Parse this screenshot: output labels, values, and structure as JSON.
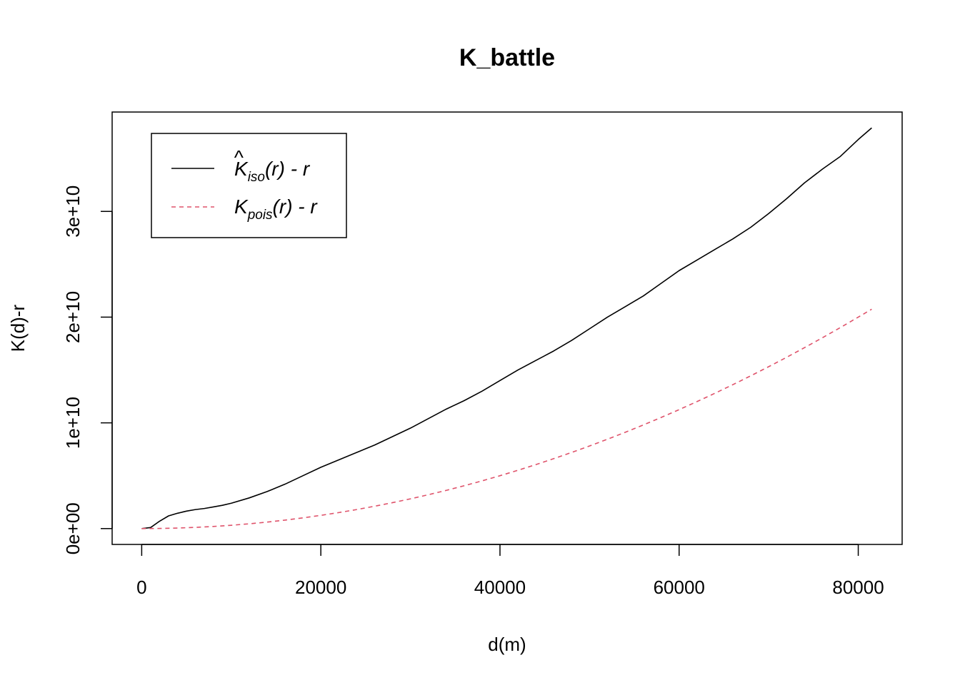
{
  "chart_data": {
    "type": "line",
    "title": "K_battle",
    "xlabel": "d(m)",
    "ylabel": "K(d)-r",
    "xlim": [
      -3300,
      84900
    ],
    "ylim": [
      -1500000000,
      39400000000
    ],
    "x_ticks": [
      0,
      20000,
      40000,
      60000,
      80000
    ],
    "x_tick_labels": [
      "0",
      "20000",
      "40000",
      "60000",
      "80000"
    ],
    "y_ticks": [
      0,
      10000000000,
      20000000000,
      30000000000
    ],
    "y_tick_labels": [
      "0e+00",
      "1e+10",
      "2e+10",
      "3e+10"
    ],
    "grid": false,
    "legend": {
      "position": "top-left",
      "entries": [
        {
          "series": 0,
          "base": "K",
          "hat": true,
          "subscript": "iso",
          "suffix": "(r) - r"
        },
        {
          "series": 1,
          "base": "K",
          "hat": false,
          "subscript": "pois",
          "suffix": "(r) - r"
        }
      ]
    },
    "series": [
      {
        "color": "#000000",
        "dash": "solid",
        "x": [
          0,
          1000,
          2000,
          3000,
          4000,
          5000,
          6000,
          7000,
          8000,
          9000,
          10000,
          12000,
          14000,
          16000,
          18000,
          20000,
          22000,
          24000,
          26000,
          28000,
          30000,
          32000,
          34000,
          36000,
          38000,
          40000,
          42000,
          44000,
          46000,
          48000,
          50000,
          52000,
          54000,
          56000,
          58000,
          60000,
          62000,
          64000,
          66000,
          68000,
          70000,
          72000,
          74000,
          76000,
          78000,
          80000,
          81500
        ],
        "y": [
          0,
          100000000,
          700000000,
          1200000000,
          1450000000,
          1650000000,
          1800000000,
          1900000000,
          2050000000,
          2200000000,
          2400000000,
          2900000000,
          3500000000,
          4200000000,
          5000000000,
          5800000000,
          6500000000,
          7200000000,
          7900000000,
          8700000000,
          9500000000,
          10400000000,
          11300000000,
          12100000000,
          13000000000,
          14000000000,
          15000000000,
          15900000000,
          16800000000,
          17800000000,
          18900000000,
          20000000000,
          21000000000,
          22000000000,
          23200000000,
          24400000000,
          25400000000,
          26400000000,
          27400000000,
          28500000000,
          29800000000,
          31200000000,
          32700000000,
          34000000000,
          35200000000,
          36800000000,
          37900000000
        ]
      },
      {
        "color": "#DF536B",
        "dash": "dashed",
        "x": [
          0,
          2000,
          4000,
          6000,
          8000,
          10000,
          12000,
          14000,
          16000,
          18000,
          20000,
          22000,
          24000,
          26000,
          28000,
          30000,
          32000,
          34000,
          36000,
          38000,
          40000,
          42000,
          44000,
          46000,
          48000,
          50000,
          52000,
          54000,
          56000,
          58000,
          60000,
          62000,
          64000,
          66000,
          68000,
          70000,
          72000,
          74000,
          76000,
          78000,
          80000,
          81500
        ],
        "y": [
          0,
          12500000,
          50000000,
          112500000,
          200000000,
          312500000,
          450000000,
          612500000,
          800000000,
          1012500000,
          1250000000,
          1512500000,
          1800000000,
          2112500000,
          2450000000,
          2812500000,
          3200000000,
          3612500000,
          4050000000,
          4512500000,
          5000000000,
          5512500000,
          6050000000,
          6612500000,
          7200000000,
          7812500000,
          8450000000,
          9112500000,
          9800000000,
          10512500000,
          11250000000,
          12012500000,
          12800000000,
          13612500000,
          14450000000,
          15312500000,
          16200000000,
          17112500000,
          18050000000,
          19012500000,
          20000000000,
          20750000000
        ]
      }
    ]
  }
}
